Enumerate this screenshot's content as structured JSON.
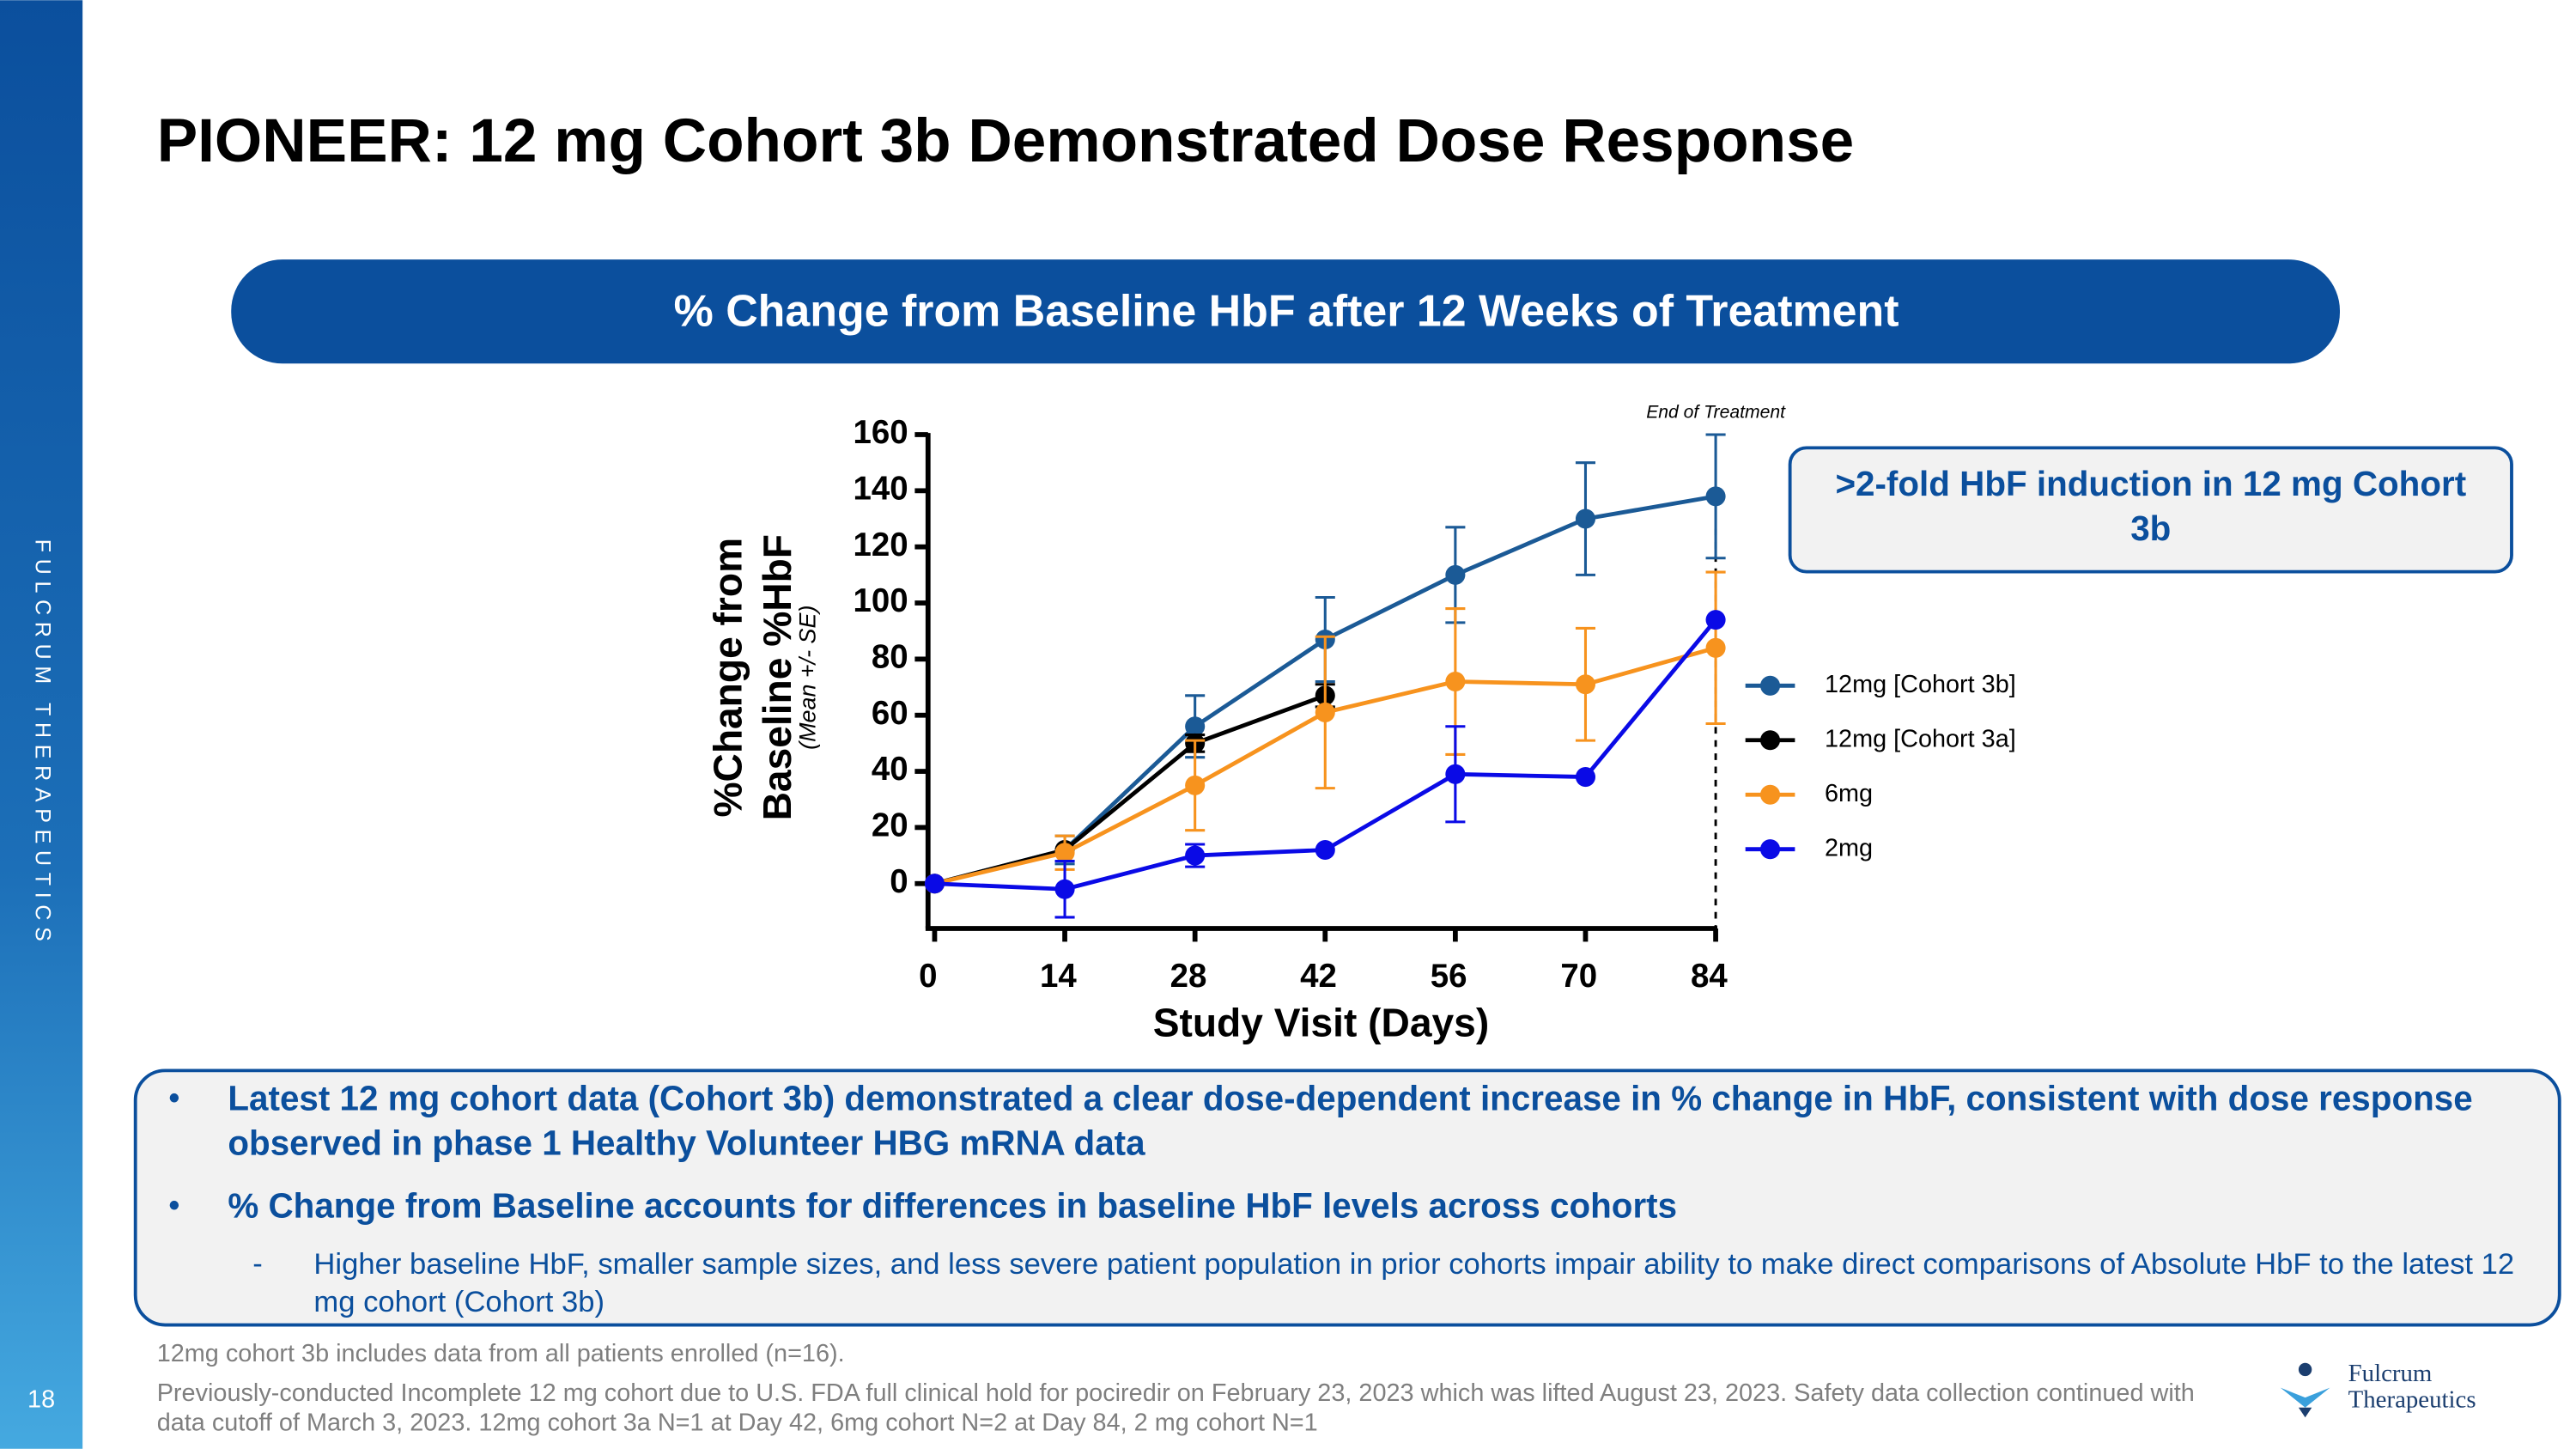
{
  "slide": {
    "sidebar": "FULCRUM THERAPEUTICS",
    "page_number": "18",
    "title": "PIONEER: 12 mg Cohort 3b Demonstrated Dose Response",
    "banner": "% Change from Baseline HbF after 12 Weeks of Treatment",
    "callout": ">2-fold HbF induction in 12 mg Cohort 3b",
    "bullets": [
      {
        "text": "Latest 12 mg cohort data (Cohort 3b) demonstrated a clear dose-dependent increase in % change in HbF, consistent with dose response observed in phase 1 Healthy Volunteer HBG mRNA data"
      },
      {
        "text": "% Change from Baseline accounts for differences in baseline HbF levels across cohorts",
        "sub": [
          "Higher baseline HbF,  smaller sample sizes, and less severe patient population in prior cohorts impair ability to make direct comparisons of Absolute HbF to the latest 12 mg cohort (Cohort 3b)"
        ]
      }
    ],
    "footnotes": [
      "12mg cohort 3b includes data from all patients enrolled (n=16).",
      "Previously-conducted Incomplete 12 mg cohort due to U.S. FDA full clinical hold for pociredir on February 23, 2023 which was lifted August 23, 2023. Safety data collection continued with data cutoff of March 3, 2023. 12mg cohort 3a N=1 at Day 42, 6mg cohort N=2 at Day 84, 2 mg cohort N=1"
    ],
    "logo": "Fulcrum Therapeutics"
  },
  "chart_data": {
    "type": "line",
    "xlabel": "Study Visit (Days)",
    "ylabel": "%Change from Baseline %HbF",
    "ylabel_note": "(Mean +/- SE)",
    "annotation": "End of Treatment",
    "x": [
      0,
      14,
      28,
      42,
      56,
      70,
      84
    ],
    "xlim": [
      0,
      84
    ],
    "xticks": [
      0,
      14,
      28,
      42,
      56,
      70,
      84
    ],
    "ylim": [
      -16,
      160
    ],
    "yticks": [
      0,
      20,
      40,
      60,
      80,
      100,
      120,
      140,
      160
    ],
    "legend": "right",
    "series": [
      {
        "name": "12mg [Cohort 3b]",
        "color": "#1b5a96",
        "values": [
          0,
          12,
          56,
          87,
          110,
          130,
          138
        ],
        "errors": [
          null,
          5,
          11,
          15,
          17,
          20,
          22
        ]
      },
      {
        "name": "12mg [Cohort 3a]",
        "color": "#000000",
        "values": [
          0,
          12,
          50,
          67,
          null,
          null,
          null
        ],
        "errors": [
          null,
          null,
          3,
          4,
          null,
          null,
          null
        ]
      },
      {
        "name": "6mg",
        "color": "#f7931e",
        "values": [
          0,
          11,
          35,
          61,
          72,
          71,
          84
        ],
        "errors": [
          null,
          6,
          16,
          27,
          26,
          20,
          27
        ]
      },
      {
        "name": "2mg",
        "color": "#0a0ae6",
        "values": [
          0,
          -2,
          10,
          12,
          39,
          38,
          94
        ],
        "errors": [
          null,
          10,
          4,
          null,
          17,
          null,
          null
        ]
      }
    ]
  }
}
